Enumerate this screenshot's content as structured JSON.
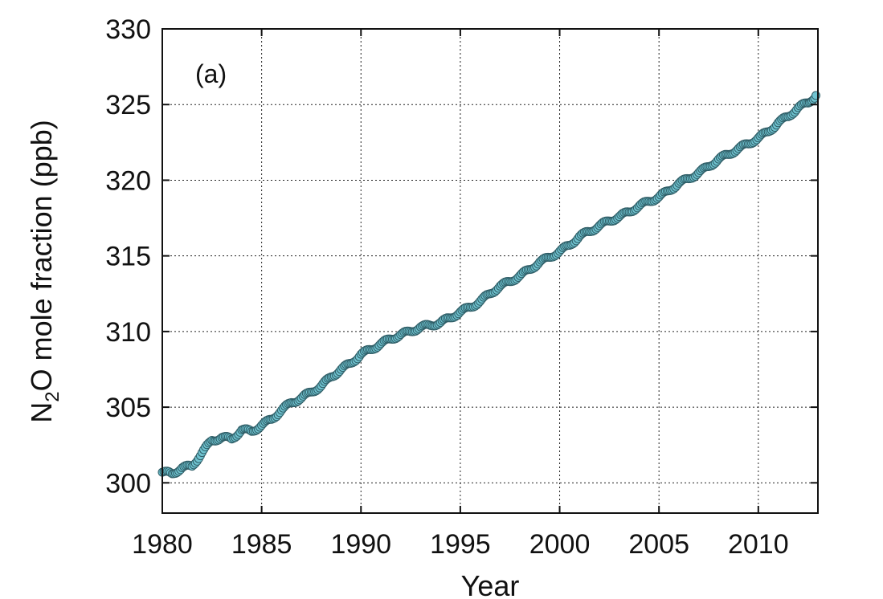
{
  "chart_data": {
    "type": "scatter",
    "panel_label": "(a)",
    "xlabel": "Year",
    "ylabel_main": "N",
    "ylabel_sub": "2",
    "ylabel_rest": "O mole fraction (ppb)",
    "xlim": [
      1980,
      2013
    ],
    "ylim": [
      298,
      330
    ],
    "xticks": [
      1980,
      1985,
      1990,
      1995,
      2000,
      2005,
      2010
    ],
    "yticks": [
      300,
      305,
      310,
      315,
      320,
      325,
      330
    ],
    "grid": true,
    "marker_color": "#6fc3d0",
    "marker_edge_color": "#2f5d66",
    "series": [
      {
        "x": [
          1980.0,
          1980.5,
          1981.0,
          1981.5,
          1982.0,
          1982.5,
          1983.0,
          1983.5,
          1984.0,
          1984.5,
          1985.0,
          1985.5,
          1986.0,
          1986.5,
          1987.0,
          1987.5,
          1988.0,
          1988.5,
          1989.0,
          1989.5,
          1990.0,
          1990.5,
          1991.0,
          1991.5,
          1992.0,
          1992.5,
          1993.0,
          1993.5,
          1994.0,
          1994.5,
          1995.0,
          1995.5,
          1996.0,
          1996.5,
          1997.0,
          1997.5,
          1998.0,
          1998.5,
          1999.0,
          1999.5,
          2000.0,
          2000.5,
          2001.0,
          2001.5,
          2002.0,
          2002.5,
          2003.0,
          2003.5,
          2004.0,
          2004.5,
          2005.0,
          2005.5,
          2006.0,
          2006.5,
          2007.0,
          2007.5,
          2008.0,
          2008.5,
          2009.0,
          2009.5,
          2010.0,
          2010.5,
          2011.0,
          2011.5,
          2012.0,
          2012.5,
          2012.9
        ],
        "y": [
          300.7,
          300.6,
          301.0,
          301.1,
          302.0,
          302.8,
          303.0,
          302.9,
          303.5,
          303.4,
          303.8,
          304.2,
          304.8,
          305.3,
          305.6,
          306.0,
          306.4,
          307.0,
          307.5,
          307.9,
          308.5,
          308.8,
          309.2,
          309.5,
          309.8,
          310.0,
          310.3,
          310.4,
          310.6,
          310.9,
          311.3,
          311.6,
          312.0,
          312.5,
          313.0,
          313.3,
          313.7,
          314.1,
          314.6,
          314.9,
          315.3,
          315.7,
          316.3,
          316.6,
          317.0,
          317.3,
          317.6,
          317.9,
          318.3,
          318.6,
          318.9,
          319.3,
          319.8,
          320.1,
          320.5,
          320.9,
          321.4,
          321.7,
          322.1,
          322.4,
          322.8,
          323.2,
          323.8,
          324.2,
          324.8,
          325.1,
          325.6
        ]
      }
    ]
  }
}
